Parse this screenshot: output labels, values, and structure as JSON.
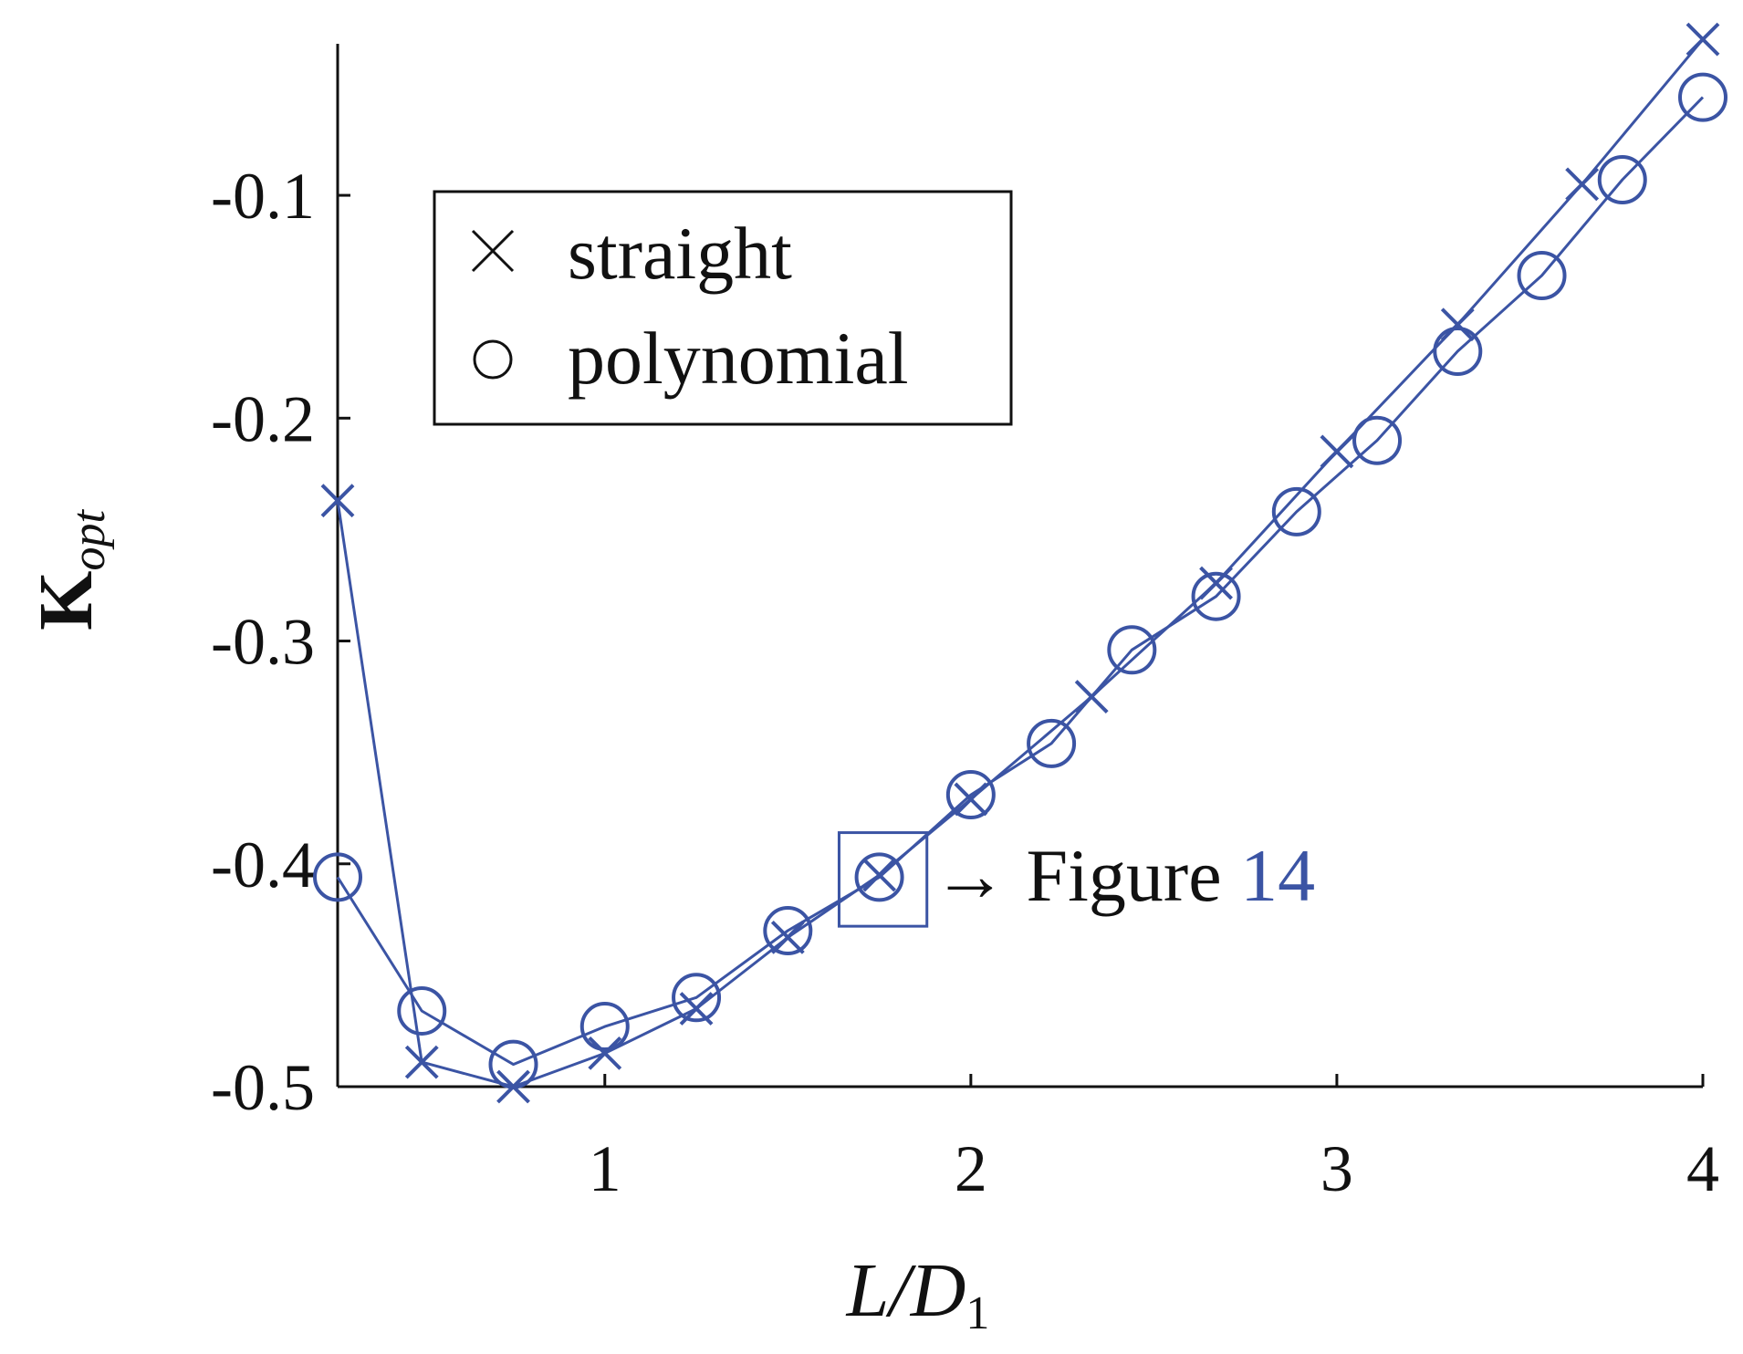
{
  "chart_data": {
    "type": "line",
    "xlabel": "L/D",
    "xlabel_subscript": "1",
    "ylabel": "K",
    "ylabel_subscript": "opt",
    "xlim": [
      0.27,
      4.0
    ],
    "ylim": [
      -0.5,
      -0.032
    ],
    "x_ticks": [
      1,
      2,
      3,
      4
    ],
    "x_tick_labels": [
      "1",
      "2",
      "3",
      "4"
    ],
    "y_ticks": [
      -0.5,
      -0.4,
      -0.3,
      -0.2,
      -0.1
    ],
    "y_tick_labels": [
      "-0.5",
      "-0.4",
      "-0.3",
      "-0.2",
      "-0.1"
    ],
    "grid": false,
    "legend_position": "top-left",
    "series_color": "#3b54a4",
    "series": [
      {
        "name": "straight",
        "marker": "x",
        "x": [
          0.27,
          0.5,
          0.75,
          1.0,
          1.25,
          1.5,
          1.75,
          2.0,
          2.33,
          2.67,
          3.0,
          3.33,
          3.67,
          4.0
        ],
        "y": [
          -0.237,
          -0.489,
          -0.5,
          -0.485,
          -0.465,
          -0.433,
          -0.405,
          -0.371,
          -0.325,
          -0.274,
          -0.215,
          -0.158,
          -0.095,
          -0.03
        ]
      },
      {
        "name": "polynomial",
        "marker": "o",
        "x": [
          0.27,
          0.5,
          0.75,
          1.0,
          1.25,
          1.5,
          1.75,
          2.0,
          2.22,
          2.44,
          2.67,
          2.89,
          3.11,
          3.33,
          3.56,
          3.78,
          4.0
        ],
        "y": [
          -0.406,
          -0.466,
          -0.49,
          -0.473,
          -0.46,
          -0.43,
          -0.406,
          -0.369,
          -0.346,
          -0.304,
          -0.28,
          -0.242,
          -0.21,
          -0.17,
          -0.136,
          -0.093,
          -0.056
        ]
      }
    ],
    "annotation": {
      "arrow": "→",
      "text": "Figure",
      "ref": "14",
      "ref_color": "#3b54a4",
      "box_x": [
        1.64,
        1.88
      ],
      "box_y": [
        -0.428,
        -0.386
      ]
    }
  }
}
